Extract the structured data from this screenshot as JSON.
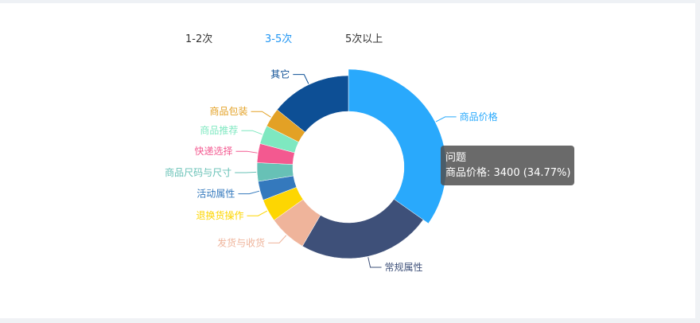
{
  "tabs": [
    {
      "label": "1-2次",
      "active": false
    },
    {
      "label": "3-5次",
      "active": true
    },
    {
      "label": "5次以上",
      "active": false
    }
  ],
  "colors": {
    "active_tab": "#2196f3",
    "tab": "#333333"
  },
  "tooltip": {
    "title": "问题",
    "line": "商品价格: 3400 (34.77%)"
  },
  "chart_data": {
    "type": "pie",
    "variant": "donut",
    "highlighted": "商品价格",
    "slices": [
      {
        "label": "商品价格",
        "value": 3400,
        "percent": 34.77,
        "color": "#29a9fc"
      },
      {
        "label": "常规属性",
        "value": 2310,
        "color": "#3e5079"
      },
      {
        "label": "发货与收货",
        "value": 660,
        "color": "#efb49b"
      },
      {
        "label": "退换货操作",
        "value": 390,
        "color": "#fdd602"
      },
      {
        "label": "活动属性",
        "value": 330,
        "color": "#3479bd"
      },
      {
        "label": "商品尺码与尺寸",
        "value": 320,
        "color": "#67c1b6"
      },
      {
        "label": "快递选择",
        "value": 330,
        "color": "#f35990"
      },
      {
        "label": "商品推荐",
        "value": 320,
        "color": "#7ee8c0"
      },
      {
        "label": "商品包装",
        "value": 330,
        "color": "#e3a125"
      },
      {
        "label": "其它",
        "value": 1390,
        "color": "#0d4f95"
      }
    ]
  }
}
